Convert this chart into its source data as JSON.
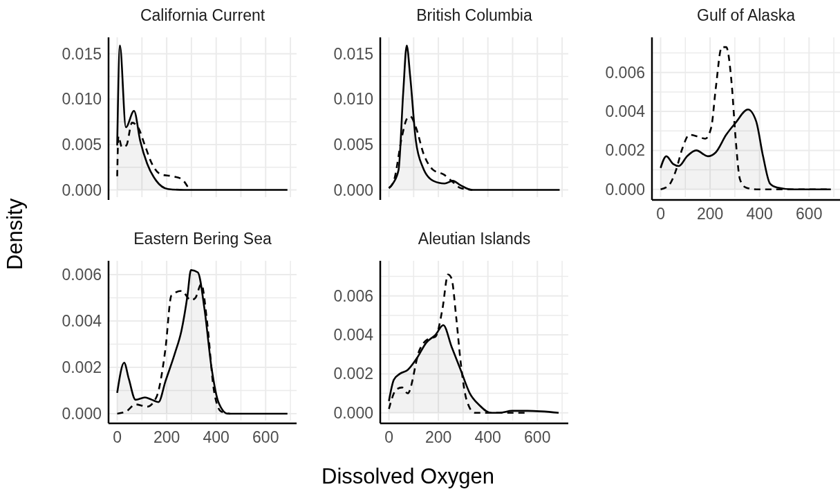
{
  "chart_data": [
    {
      "type": "area",
      "title": "California Current",
      "ylabel": "Density",
      "xlim": [
        -35,
        725
      ],
      "ylim": [
        -0.0008,
        0.0168
      ],
      "xticks": [
        0,
        100,
        200,
        300,
        400,
        500,
        600,
        700
      ],
      "yticks": [
        {
          "value": 0,
          "label": "0.000"
        },
        {
          "value": 0.0025,
          "label": null
        },
        {
          "value": 0.005,
          "label": "0.005"
        },
        {
          "value": 0.0075,
          "label": null
        },
        {
          "value": 0.01,
          "label": "0.010"
        },
        {
          "value": 0.0125,
          "label": null
        },
        {
          "value": 0.015,
          "label": "0.015"
        }
      ],
      "grid": true,
      "tick_labels": "y",
      "series": [
        {
          "color": "#000000",
          "line_style": "solid",
          "x": [
            0,
            11,
            35,
            68,
            93,
            121,
            158,
            205,
            270,
            688
          ],
          "values": [
            0.0049,
            0.0159,
            0.0069,
            0.0087,
            0.0054,
            0.0029,
            0.001,
            0.0001,
            0,
            0
          ]
        },
        {
          "type": "line",
          "color": "#000000",
          "line_style": "dashed",
          "x": [
            0,
            5,
            19,
            37,
            60,
            84,
            112,
            140,
            177,
            223,
            260,
            288
          ],
          "values": [
            0.0015,
            0.0059,
            0.0047,
            0.0049,
            0.0074,
            0.0069,
            0.0049,
            0.0029,
            0.0017,
            0.0015,
            0.0012,
            0.0002
          ]
        }
      ]
    },
    {
      "type": "area",
      "title": "British Columbia",
      "xlim": [
        -35,
        725
      ],
      "ylim": [
        -0.0008,
        0.0168
      ],
      "xticks": [
        0,
        100,
        200,
        300,
        400,
        500,
        600,
        700
      ],
      "yticks": [
        {
          "value": 0,
          "label": "0.000"
        },
        {
          "value": 0.0025,
          "label": null
        },
        {
          "value": 0.005,
          "label": "0.005"
        },
        {
          "value": 0.0075,
          "label": null
        },
        {
          "value": 0.01,
          "label": "0.010"
        },
        {
          "value": 0.0125,
          "label": null
        },
        {
          "value": 0.015,
          "label": "0.015"
        }
      ],
      "grid": true,
      "tick_labels": "y",
      "series": [
        {
          "color": "#000000",
          "line_style": "solid",
          "x": [
            0,
            16,
            39,
            58,
            72,
            86,
            109,
            137,
            179,
            225,
            258,
            290,
            337,
            690
          ],
          "values": [
            0.0002,
            0.0007,
            0.0022,
            0.0108,
            0.0159,
            0.0125,
            0.0054,
            0.0025,
            0.001,
            0.0007,
            0.001,
            0.0005,
            0,
            0
          ]
        },
        {
          "type": "line",
          "color": "#000000",
          "line_style": "dashed",
          "x": [
            0,
            20,
            53,
            72,
            86,
            109,
            141,
            179,
            221,
            253,
            290,
            337
          ],
          "values": [
            0.0002,
            0.001,
            0.0059,
            0.0078,
            0.0081,
            0.0069,
            0.0039,
            0.0022,
            0.0017,
            0.001,
            0.0002,
            0
          ]
        }
      ]
    },
    {
      "type": "area",
      "title": "Gulf of Alaska",
      "xlim": [
        -35,
        725
      ],
      "ylim": [
        -0.0004,
        0.0078
      ],
      "xticks": [
        {
          "value": 0,
          "label": "0"
        },
        {
          "value": 100,
          "label": null
        },
        {
          "value": 200,
          "label": "200"
        },
        {
          "value": 300,
          "label": null
        },
        {
          "value": 400,
          "label": "400"
        },
        {
          "value": 500,
          "label": null
        },
        {
          "value": 600,
          "label": "600"
        },
        {
          "value": 700,
          "label": null
        }
      ],
      "yticks": [
        {
          "value": 0,
          "label": "0.000"
        },
        {
          "value": 0.001,
          "label": null
        },
        {
          "value": 0.002,
          "label": "0.002"
        },
        {
          "value": 0.003,
          "label": null
        },
        {
          "value": 0.004,
          "label": "0.004"
        },
        {
          "value": 0.005,
          "label": null
        },
        {
          "value": 0.006,
          "label": "0.006"
        },
        {
          "value": 0.007,
          "label": null
        }
      ],
      "grid": true,
      "series": [
        {
          "color": "#000000",
          "line_style": "solid",
          "x": [
            0,
            23,
            51,
            74,
            107,
            144,
            191,
            223,
            265,
            302,
            353,
            386,
            414,
            442,
            470,
            535,
            688
          ],
          "values": [
            0.0011,
            0.0017,
            0.0013,
            0.0012,
            0.0017,
            0.002,
            0.0017,
            0.0019,
            0.0028,
            0.0034,
            0.0041,
            0.0035,
            0.0017,
            0.0003,
            0.0001,
            0,
            0
          ]
        },
        {
          "type": "line",
          "color": "#000000",
          "line_style": "dashed",
          "x": [
            0,
            33,
            60,
            88,
            116,
            153,
            181,
            205,
            223,
            247,
            265,
            288,
            302,
            321,
            344,
            386,
            688
          ],
          "values": [
            0,
            0.0002,
            0.0009,
            0.0021,
            0.0028,
            0.0027,
            0.0026,
            0.0032,
            0.0052,
            0.0073,
            0.0073,
            0.0053,
            0.0028,
            0.0005,
            0.0001,
            0,
            0
          ]
        }
      ]
    },
    {
      "type": "area",
      "title": "Eastern Bering Sea",
      "xlim": [
        -35,
        725
      ],
      "ylim": [
        -0.0003,
        0.0066
      ],
      "xticks": [
        {
          "value": 0,
          "label": "0"
        },
        {
          "value": 100,
          "label": null
        },
        {
          "value": 200,
          "label": "200"
        },
        {
          "value": 300,
          "label": null
        },
        {
          "value": 400,
          "label": "400"
        },
        {
          "value": 500,
          "label": null
        },
        {
          "value": 600,
          "label": "600"
        },
        {
          "value": 700,
          "label": null
        }
      ],
      "yticks": [
        {
          "value": 0,
          "label": "0.000"
        },
        {
          "value": 0.001,
          "label": null
        },
        {
          "value": 0.002,
          "label": "0.002"
        },
        {
          "value": 0.003,
          "label": null
        },
        {
          "value": 0.004,
          "label": "0.004"
        },
        {
          "value": 0.005,
          "label": null
        },
        {
          "value": 0.006,
          "label": "0.006"
        }
      ],
      "grid": true,
      "series": [
        {
          "color": "#000000",
          "line_style": "solid",
          "x": [
            0,
            28,
            47,
            74,
            112,
            140,
            167,
            195,
            233,
            260,
            284,
            298,
            326,
            353,
            381,
            409,
            447,
            688
          ],
          "values": [
            0.0009,
            0.0022,
            0.0015,
            0.0006,
            0.0007,
            0.0006,
            0.0005,
            0.0014,
            0.0026,
            0.0036,
            0.0051,
            0.0062,
            0.0061,
            0.0045,
            0.002,
            0.0005,
            0,
            0
          ]
        },
        {
          "type": "line",
          "color": "#000000",
          "line_style": "dashed",
          "x": [
            0,
            37,
            74,
            121,
            158,
            195,
            219,
            260,
            298,
            316,
            340,
            363,
            391,
            419,
            456
          ],
          "values": [
            0,
            0.0001,
            0.0004,
            0.0003,
            0.0007,
            0.0028,
            0.0051,
            0.0053,
            0.0049,
            0.005,
            0.0056,
            0.004,
            0.001,
            0.0001,
            0
          ]
        }
      ]
    },
    {
      "type": "area",
      "title": "Aleutian Islands",
      "xlabel": "Dissolved Oxygen",
      "xlim": [
        -35,
        725
      ],
      "ylim": [
        -0.0004,
        0.0078
      ],
      "xticks": [
        {
          "value": 0,
          "label": "0"
        },
        {
          "value": 100,
          "label": null
        },
        {
          "value": 200,
          "label": "200"
        },
        {
          "value": 300,
          "label": null
        },
        {
          "value": 400,
          "label": "400"
        },
        {
          "value": 500,
          "label": null
        },
        {
          "value": 600,
          "label": "600"
        },
        {
          "value": 700,
          "label": null
        }
      ],
      "yticks": [
        {
          "value": 0,
          "label": "0.000"
        },
        {
          "value": 0.001,
          "label": null
        },
        {
          "value": 0.002,
          "label": "0.002"
        },
        {
          "value": 0.003,
          "label": null
        },
        {
          "value": 0.004,
          "label": "0.004"
        },
        {
          "value": 0.005,
          "label": null
        },
        {
          "value": 0.006,
          "label": "0.006"
        },
        {
          "value": 0.007,
          "label": null
        }
      ],
      "grid": true,
      "series": [
        {
          "color": "#000000",
          "line_style": "solid",
          "x": [
            0,
            20,
            44,
            76,
            113,
            151,
            188,
            220,
            253,
            290,
            327,
            365,
            411,
            448,
            498,
            560,
            686
          ],
          "values": [
            0.0006,
            0.0017,
            0.002,
            0.0022,
            0.0028,
            0.0036,
            0.004,
            0.0045,
            0.0034,
            0.0022,
            0.001,
            0.0004,
            0,
            0,
            0.0001,
            0.0001,
            0
          ]
        },
        {
          "type": "line",
          "color": "#000000",
          "line_style": "dashed",
          "x": [
            0,
            30,
            53,
            76,
            123,
            160,
            188,
            216,
            239,
            253,
            272,
            290,
            313,
            346,
            560
          ],
          "values": [
            0.0002,
            0.0012,
            0.0013,
            0.001,
            0.0032,
            0.0038,
            0.0039,
            0.0053,
            0.0071,
            0.0069,
            0.0049,
            0.0026,
            0.0007,
            0,
            0
          ]
        }
      ]
    }
  ]
}
